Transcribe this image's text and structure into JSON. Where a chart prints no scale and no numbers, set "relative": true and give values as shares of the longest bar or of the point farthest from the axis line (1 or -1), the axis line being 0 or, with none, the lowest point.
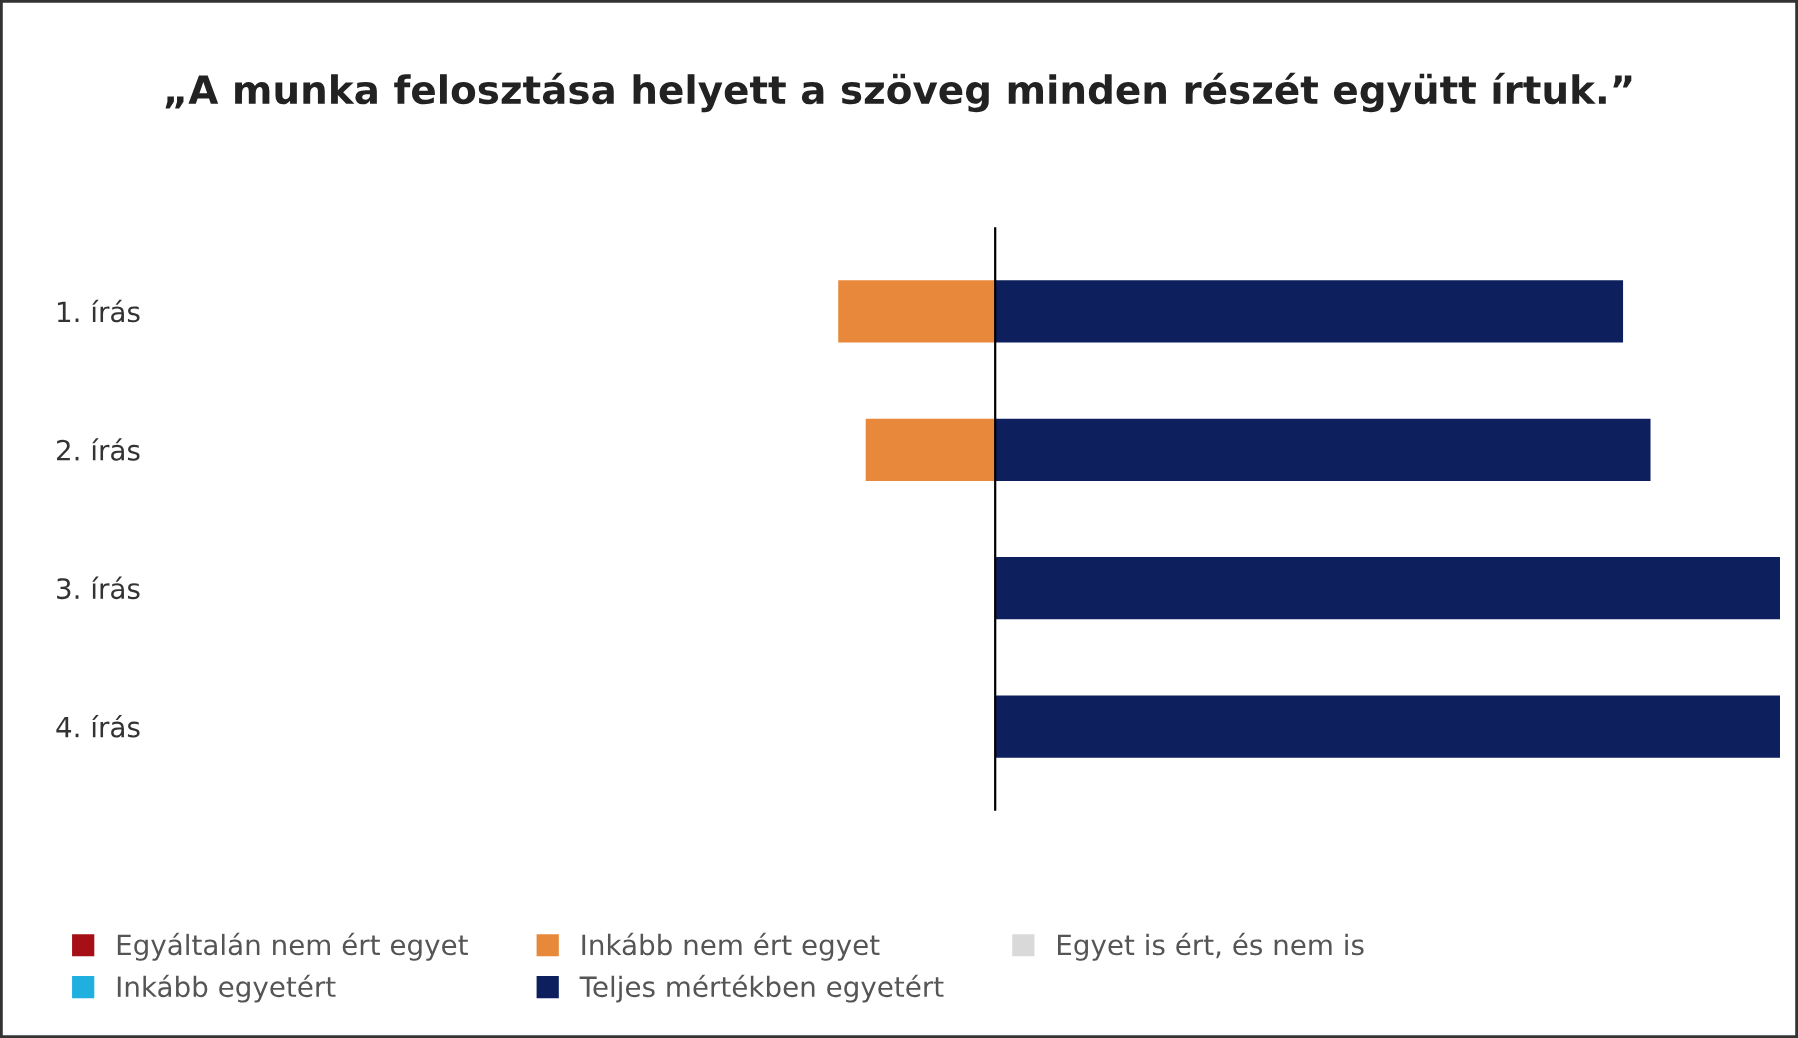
{
  "chart_data": {
    "type": "bar",
    "orientation": "horizontal",
    "stacked": true,
    "relative": true,
    "title": "„A munka felosztása helyett a szöveg minden részét együtt írtuk.”",
    "categories": [
      "1. írás",
      "2. írás",
      "3. írás",
      "4. írás"
    ],
    "series": [
      {
        "name": "Egyáltalán nem ért egyet",
        "color": "#a50f15",
        "values": [
          0,
          0,
          0,
          0
        ]
      },
      {
        "name": "Inkább nem ért egyet",
        "color": "#e8883a",
        "values": [
          -0.2,
          -0.165,
          0,
          0
        ]
      },
      {
        "name": "Egyet is ért, és nem is",
        "color": "#d9d9d9",
        "values": [
          0,
          0,
          0,
          0
        ]
      },
      {
        "name": "Inkább egyetért",
        "color": "#1fb0e0",
        "values": [
          0,
          0,
          0,
          0
        ]
      },
      {
        "name": "Teljes mértékben egyetért",
        "color": "#0d1f5c",
        "values": [
          0.8,
          0.835,
          1,
          1
        ]
      }
    ],
    "legend": "bottom",
    "grid": false
  }
}
